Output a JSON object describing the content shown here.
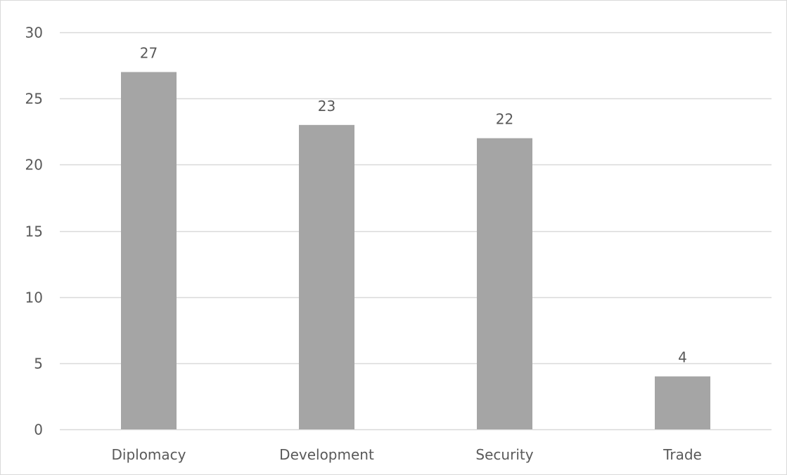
{
  "chart_data": {
    "type": "bar",
    "title": "",
    "xlabel": "",
    "ylabel": "",
    "categories": [
      "Diplomacy",
      "Development",
      "Security",
      "Trade"
    ],
    "values": [
      27,
      23,
      22,
      4
    ],
    "data_labels": [
      "27",
      "23",
      "22",
      "4"
    ],
    "ylim": [
      0,
      30
    ],
    "yticks": [
      0,
      5,
      10,
      15,
      20,
      25,
      30
    ],
    "ytick_labels": [
      "0",
      "5",
      "10",
      "15",
      "20",
      "25",
      "30"
    ],
    "grid": true,
    "legend": "none",
    "colors": {
      "bar": "#a5a5a5",
      "grid": "#d9d9d9",
      "text": "#595959",
      "border": "#d9d9d9"
    }
  }
}
